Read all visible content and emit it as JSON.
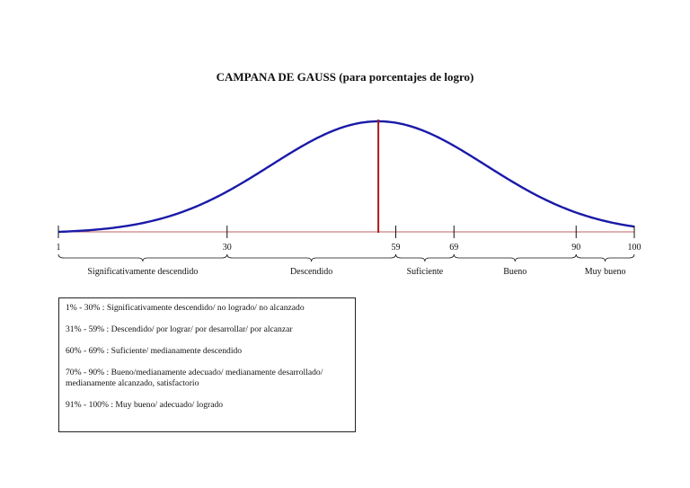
{
  "title": "CAMPANA DE GAUSS (para porcentajes de logro)",
  "colors": {
    "curve": "#1a1aa8",
    "axis": "#c06060",
    "mean_line": "#b01818",
    "ink": "#111111"
  },
  "chart_data": {
    "type": "line",
    "title": "CAMPANA DE GAUSS (para porcentajes de logro)",
    "curve": "normal distribution (bell curve)",
    "xlim": [
      1,
      100
    ],
    "mean": 56,
    "std_dev": 18.5,
    "ticks": [
      {
        "value": 1,
        "label": "1"
      },
      {
        "value": 30,
        "label": "30"
      },
      {
        "value": 59,
        "label": "59"
      },
      {
        "value": 69,
        "label": "69"
      },
      {
        "value": 90,
        "label": "90"
      },
      {
        "value": 100,
        "label": "100"
      }
    ],
    "ranges": [
      {
        "from": 1,
        "to": 30,
        "label": "Significativamente descendido"
      },
      {
        "from": 30,
        "to": 59,
        "label": "Descendido"
      },
      {
        "from": 59,
        "to": 69,
        "label": "Suficiente"
      },
      {
        "from": 69,
        "to": 90,
        "label": "Bueno"
      },
      {
        "from": 90,
        "to": 100,
        "label": "Muy bueno"
      }
    ]
  },
  "legend": [
    "1% - 30% : Significativamente descendido/ no logrado/ no alcanzado",
    "31% - 59% : Descendido/ por lograr/ por desarrollar/ por alcanzar",
    "60% - 69% : Suficiente/ medianamente descendido",
    "70% - 90% : Bueno/medianamente adecuado/ medianamente desarrollado/ medianamente alcanzado, satisfactorio",
    "91% - 100% : Muy bueno/ adecuado/ logrado"
  ]
}
